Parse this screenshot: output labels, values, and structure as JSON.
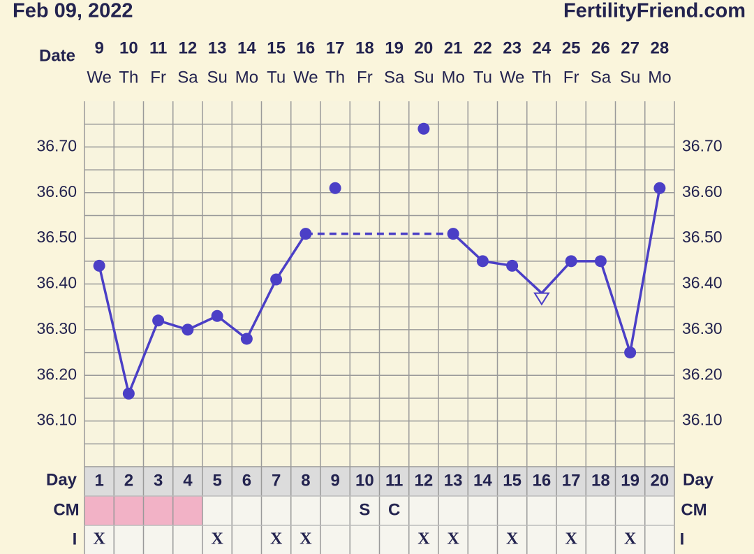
{
  "header": {
    "date": "Feb 09, 2022",
    "site": "FertilityFriend.com"
  },
  "chart_data": {
    "type": "line",
    "x_label": "Date",
    "categories": [
      "9",
      "10",
      "11",
      "12",
      "13",
      "14",
      "15",
      "16",
      "17",
      "18",
      "19",
      "20",
      "21",
      "22",
      "23",
      "24",
      "25",
      "26",
      "27",
      "28"
    ],
    "weekdays": [
      "We",
      "Th",
      "Fr",
      "Sa",
      "Su",
      "Mo",
      "Tu",
      "We",
      "Th",
      "Fr",
      "Sa",
      "Su",
      "Mo",
      "Tu",
      "We",
      "Th",
      "Fr",
      "Sa",
      "Su",
      "Mo"
    ],
    "series": [
      {
        "color": "#4b3fc6",
        "gap_style": "dashed",
        "values": [
          36.44,
          36.16,
          36.32,
          36.3,
          36.33,
          36.28,
          36.41,
          36.51,
          null,
          null,
          null,
          null,
          36.51,
          36.45,
          36.44,
          36.38,
          36.45,
          36.45,
          36.25,
          36.61
        ],
        "markers": [
          "dot",
          "dot",
          "dot",
          "dot",
          "dot",
          "dot",
          "dot",
          "dot",
          null,
          null,
          null,
          null,
          "dot",
          "dot",
          "dot",
          "open-triangle",
          "dot",
          "dot",
          "dot",
          "dot"
        ]
      },
      {
        "color": "#4b3fc6",
        "line": false,
        "values": [
          null,
          null,
          null,
          null,
          null,
          null,
          null,
          null,
          36.61,
          null,
          null,
          36.74,
          null,
          null,
          null,
          null,
          null,
          null,
          null,
          null
        ]
      }
    ],
    "ylim": [
      36.0,
      36.8
    ],
    "yticks": [
      {
        "value": 36.1,
        "label": "36.10"
      },
      {
        "value": 36.2,
        "label": "36.20"
      },
      {
        "value": 36.3,
        "label": "36.30"
      },
      {
        "value": 36.4,
        "label": "36.40"
      },
      {
        "value": 36.5,
        "label": "36.50"
      },
      {
        "value": 36.6,
        "label": "36.60"
      },
      {
        "value": 36.7,
        "label": "36.70"
      }
    ],
    "minor_yticks": [
      36.05,
      36.15,
      36.25,
      36.35,
      36.45,
      36.55,
      36.65,
      36.75
    ],
    "grid": true
  },
  "table": {
    "day_label": "Day",
    "days": [
      "1",
      "2",
      "3",
      "4",
      "5",
      "6",
      "7",
      "8",
      "9",
      "10",
      "11",
      "12",
      "13",
      "14",
      "15",
      "16",
      "17",
      "18",
      "19",
      "20"
    ],
    "cm_label": "CM",
    "cm": [
      null,
      null,
      null,
      null,
      null,
      null,
      null,
      null,
      null,
      "S",
      "C",
      null,
      null,
      null,
      null,
      null,
      null,
      null,
      null,
      null
    ],
    "cm_fill": [
      "#f2b2c6",
      "#f2b2c6",
      "#f2b2c6",
      "#f2b2c6",
      null,
      null,
      null,
      null,
      null,
      null,
      null,
      null,
      null,
      null,
      null,
      null,
      null,
      null,
      null,
      null
    ],
    "i_label": "I",
    "i": [
      "X",
      null,
      null,
      null,
      "X",
      null,
      "X",
      "X",
      null,
      null,
      null,
      "X",
      "X",
      null,
      "X",
      null,
      "X",
      null,
      "X",
      null
    ]
  }
}
